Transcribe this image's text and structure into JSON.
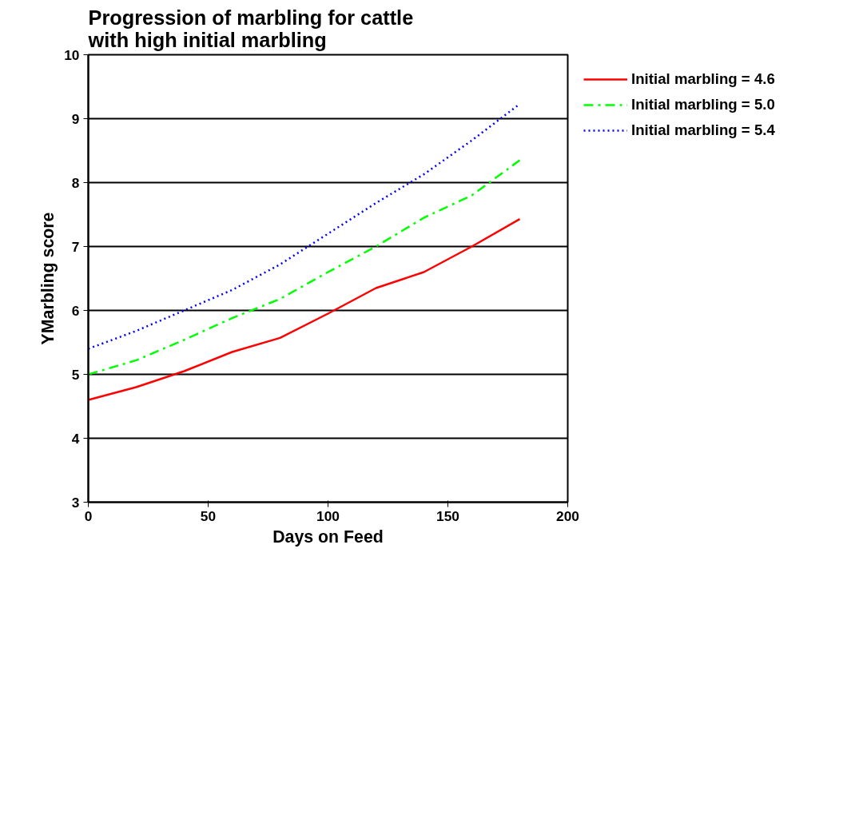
{
  "chart_data": {
    "type": "line",
    "title": "Progression of marbling for cattle\nwith high initial marbling",
    "xlabel": "Days on Feed",
    "ylabel": "YMarbling score",
    "x": [
      0,
      20,
      40,
      60,
      80,
      100,
      120,
      140,
      160,
      180
    ],
    "series": [
      {
        "name": "Initial marbling = 4.6",
        "color": "#ff0000",
        "line_style": "solid",
        "values": [
          4.6,
          4.8,
          5.05,
          5.35,
          5.57,
          5.95,
          6.35,
          6.6,
          7.0,
          7.43
        ]
      },
      {
        "name": "Initial marbling = 5.0",
        "color": "#00ff00",
        "line_style": "dashdot",
        "values": [
          5.0,
          5.22,
          5.54,
          5.88,
          6.18,
          6.6,
          7.0,
          7.45,
          7.8,
          8.35
        ]
      },
      {
        "name": "Initial marbling = 5.4",
        "color": "#0000ff",
        "line_style": "dotted",
        "values": [
          5.4,
          5.68,
          6.0,
          6.32,
          6.72,
          7.2,
          7.68,
          8.13,
          8.66,
          9.23
        ]
      }
    ],
    "xlim": [
      0,
      200
    ],
    "xticks": [
      0,
      50,
      100,
      150,
      200
    ],
    "ylim": [
      3,
      10
    ],
    "yticks": [
      3,
      4,
      5,
      6,
      7,
      8,
      9,
      10
    ],
    "grid": "y",
    "legend": "top right",
    "marker": "none"
  }
}
